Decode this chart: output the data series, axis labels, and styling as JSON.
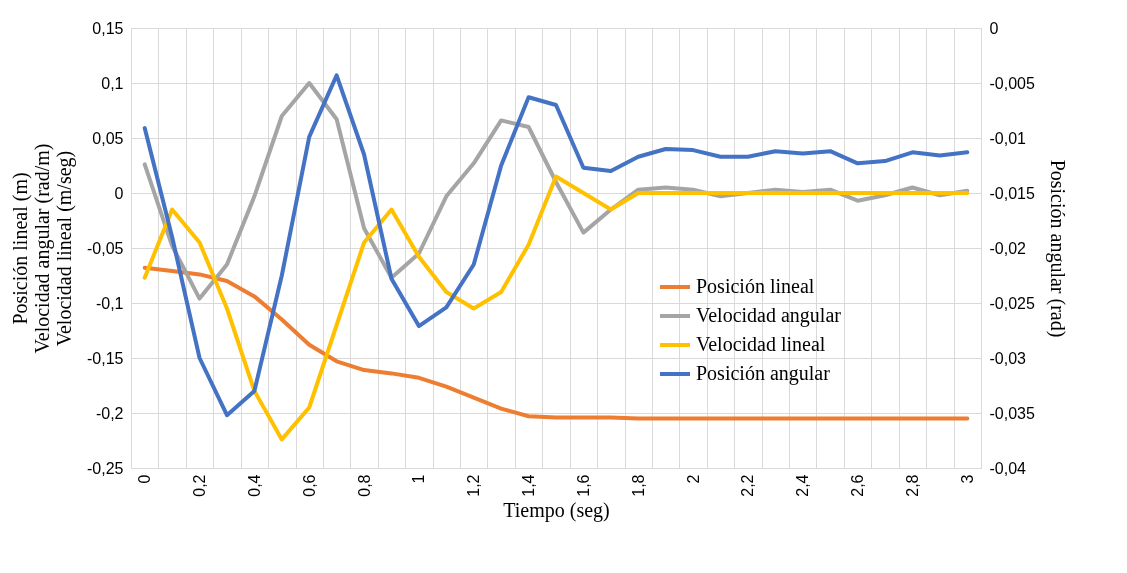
{
  "chart_data": {
    "type": "line",
    "xlabel": "Tiempo (seg)",
    "ylabel": "Posición lineal (m)\nVelocidad angular (rad/m)\nVelocidad lineal (m/seg)",
    "y2label": "Posición angular (rad)",
    "categories": [
      "0",
      null,
      "0,2",
      null,
      "0,4",
      null,
      "0,6",
      null,
      "0,8",
      null,
      "1",
      null,
      "1,2",
      null,
      "1,4",
      null,
      "1,6",
      null,
      "1,8",
      null,
      "2",
      null,
      "2,2",
      null,
      "2,4",
      null,
      "2,6",
      null,
      "2,8",
      null,
      "3"
    ],
    "series": [
      {
        "name": "Posición lineal",
        "color": "#ed7d31",
        "values": [
          -0.068,
          -0.071,
          -0.074,
          -0.08,
          -0.094,
          -0.115,
          -0.138,
          -0.153,
          -0.161,
          -0.164,
          -0.168,
          -0.176,
          -0.186,
          -0.196,
          -0.203,
          -0.204,
          -0.204,
          -0.204,
          -0.205,
          -0.205,
          -0.205,
          -0.205,
          -0.205,
          -0.205,
          -0.205,
          -0.205,
          -0.205,
          -0.205,
          -0.205,
          -0.205,
          -0.205
        ]
      },
      {
        "name": "Velocidad angular",
        "color": "#a5a5a5",
        "values": [
          0.026,
          -0.048,
          -0.096,
          -0.065,
          -0.003,
          0.07,
          0.1,
          0.067,
          -0.032,
          -0.077,
          -0.055,
          -0.003,
          0.027,
          0.066,
          0.06,
          0.01,
          -0.036,
          -0.015,
          0.003,
          0.005,
          0.003,
          -0.003,
          0,
          0.003,
          0.001,
          0.003,
          -0.007,
          -0.002,
          0.005,
          -0.002,
          0.002
        ]
      },
      {
        "name": "Velocidad lineal",
        "color": "#ffc000",
        "values": [
          -0.077,
          -0.015,
          -0.045,
          -0.105,
          -0.18,
          -0.224,
          -0.195,
          -0.12,
          -0.045,
          -0.015,
          -0.058,
          -0.09,
          -0.105,
          -0.09,
          -0.047,
          0.015,
          0,
          -0.015,
          0,
          0,
          0,
          0,
          0,
          0,
          0,
          0,
          0,
          0,
          0,
          0,
          0
        ]
      },
      {
        "name": "Posición angular",
        "color": "#4472c4",
        "axis": "y2",
        "values": [
          -0.0091,
          -0.019,
          -0.03,
          -0.0352,
          -0.033,
          -0.0225,
          -0.0099,
          -0.0043,
          -0.0115,
          -0.0228,
          -0.0271,
          -0.0254,
          -0.0215,
          -0.0125,
          -0.0063,
          -0.007,
          -0.0127,
          -0.013,
          -0.0117,
          -0.011,
          -0.0111,
          -0.0117,
          -0.0117,
          -0.0112,
          -0.0114,
          -0.0112,
          -0.0123,
          -0.0121,
          -0.0113,
          -0.0116,
          -0.0113
        ]
      }
    ],
    "ylim": [
      -0.25,
      0.15
    ],
    "yticks": [
      {
        "value": -0.25,
        "label": "-0,25"
      },
      {
        "value": -0.2,
        "label": "-0,2"
      },
      {
        "value": -0.15,
        "label": "-0,15"
      },
      {
        "value": -0.1,
        "label": "-0,1"
      },
      {
        "value": -0.05,
        "label": "-0,05"
      },
      0,
      {
        "value": 0.05,
        "label": "0,05"
      },
      {
        "value": 0.1,
        "label": "0,1"
      },
      {
        "value": 0.15,
        "label": "0,15"
      }
    ],
    "y2lim": [
      -0.04,
      0
    ],
    "y2ticks": [
      {
        "value": -0.04,
        "label": "-0,04"
      },
      {
        "value": -0.035,
        "label": "-0,035"
      },
      {
        "value": -0.03,
        "label": "-0,03"
      },
      {
        "value": -0.025,
        "label": "-0,025"
      },
      {
        "value": -0.02,
        "label": "-0,02"
      },
      {
        "value": -0.015,
        "label": "-0,015"
      },
      {
        "value": -0.01,
        "label": "-0,01"
      },
      {
        "value": -0.005,
        "label": "-0,005"
      },
      0
    ],
    "grid": true,
    "legend": "right",
    "line_style": "solid",
    "marker": "none"
  }
}
